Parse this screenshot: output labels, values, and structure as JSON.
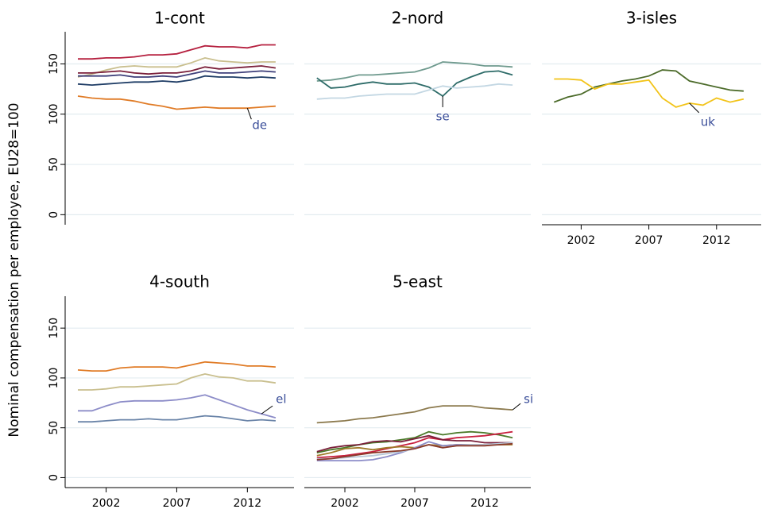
{
  "ytitle": "Nominal compensation per employee, EU28=100",
  "chart_data": [
    {
      "type": "line",
      "title": "1-cont",
      "show_y_axis": true,
      "show_x_axis": false,
      "grid": true,
      "xlim": [
        1999.1,
        2015.3
      ],
      "ylim": [
        -10,
        182
      ],
      "yticks": [
        0,
        50,
        100,
        150
      ],
      "xticks": [
        2002,
        2007,
        2012
      ],
      "x": [
        2000,
        2001,
        2002,
        2003,
        2004,
        2005,
        2006,
        2007,
        2008,
        2009,
        2010,
        2011,
        2012,
        2013,
        2014
      ],
      "series": [
        {
          "color": "#b5203f",
          "values": [
            155,
            155,
            156,
            156,
            157,
            159,
            159,
            160,
            164,
            168,
            167,
            167,
            166,
            169,
            169
          ]
        },
        {
          "color": "#c9bf8e",
          "values": [
            137,
            140,
            144,
            147,
            148,
            147,
            147,
            147,
            151,
            156,
            153,
            152,
            151,
            152,
            152
          ]
        },
        {
          "color": "#7a1f3a",
          "values": [
            141,
            141,
            142,
            143,
            141,
            140,
            141,
            141,
            143,
            147,
            145,
            146,
            147,
            148,
            146
          ]
        },
        {
          "color": "#3e3f7a",
          "values": [
            138,
            138,
            138,
            139,
            137,
            137,
            138,
            137,
            140,
            143,
            141,
            141,
            142,
            143,
            142
          ]
        },
        {
          "color": "#1f3d66",
          "values": [
            130,
            129,
            130,
            131,
            132,
            132,
            133,
            132,
            134,
            138,
            137,
            137,
            136,
            137,
            136
          ]
        },
        {
          "color": "#e07b26",
          "label": "de",
          "values": [
            118,
            116,
            115,
            115,
            113,
            110,
            108,
            105,
            106,
            107,
            106,
            106,
            106,
            107,
            108
          ]
        }
      ]
    },
    {
      "type": "line",
      "title": "2-nord",
      "show_y_axis": false,
      "show_x_axis": false,
      "grid": true,
      "xlim": [
        1999.1,
        2015.3
      ],
      "ylim": [
        -10,
        182
      ],
      "yticks": [
        0,
        50,
        100,
        150
      ],
      "xticks": [
        2002,
        2007,
        2012
      ],
      "x": [
        2000,
        2001,
        2002,
        2003,
        2004,
        2005,
        2006,
        2007,
        2008,
        2009,
        2010,
        2011,
        2012,
        2013,
        2014
      ],
      "series": [
        {
          "color": "#6f9a8e",
          "values": [
            133,
            134,
            136,
            139,
            139,
            140,
            141,
            142,
            146,
            152,
            151,
            150,
            148,
            148,
            147
          ]
        },
        {
          "color": "#2d6b68",
          "label": "se",
          "values": [
            136,
            126,
            127,
            130,
            132,
            130,
            130,
            131,
            127,
            118,
            131,
            137,
            142,
            143,
            139
          ]
        },
        {
          "color": "#c3d7e3",
          "values": [
            115,
            116,
            116,
            118,
            119,
            120,
            120,
            120,
            124,
            128,
            126,
            127,
            128,
            130,
            129
          ]
        }
      ]
    },
    {
      "type": "line",
      "title": "3-isles",
      "show_y_axis": false,
      "show_x_axis": true,
      "grid": true,
      "xlim": [
        1999.1,
        2015.3
      ],
      "ylim": [
        -10,
        182
      ],
      "yticks": [
        0,
        50,
        100,
        150
      ],
      "xticks": [
        2002,
        2007,
        2012
      ],
      "x": [
        2000,
        2001,
        2002,
        2003,
        2004,
        2005,
        2006,
        2007,
        2008,
        2009,
        2010,
        2011,
        2012,
        2013,
        2014
      ],
      "series": [
        {
          "color": "#4c6b2a",
          "values": [
            112,
            117,
            120,
            127,
            130,
            133,
            135,
            138,
            144,
            143,
            133,
            130,
            127,
            124,
            123
          ]
        },
        {
          "color": "#f2c318",
          "label": "uk",
          "values": [
            135,
            135,
            134,
            125,
            130,
            130,
            132,
            134,
            116,
            107,
            111,
            109,
            116,
            112,
            115
          ]
        }
      ]
    },
    {
      "type": "line",
      "title": "4-south",
      "show_y_axis": true,
      "show_x_axis": true,
      "grid": true,
      "xlim": [
        1999.1,
        2015.3
      ],
      "ylim": [
        -10,
        182
      ],
      "yticks": [
        0,
        50,
        100,
        150
      ],
      "xticks": [
        2002,
        2007,
        2012
      ],
      "x": [
        2000,
        2001,
        2002,
        2003,
        2004,
        2005,
        2006,
        2007,
        2008,
        2009,
        2010,
        2011,
        2012,
        2013,
        2014
      ],
      "series": [
        {
          "color": "#e07b26",
          "values": [
            108,
            107,
            107,
            110,
            111,
            111,
            111,
            110,
            113,
            116,
            115,
            114,
            112,
            112,
            111
          ]
        },
        {
          "color": "#c9bf8e",
          "values": [
            88,
            88,
            89,
            91,
            91,
            92,
            93,
            94,
            100,
            104,
            101,
            100,
            97,
            97,
            95
          ]
        },
        {
          "color": "#8c8cc8",
          "label": "el",
          "values": [
            67,
            67,
            72,
            76,
            77,
            77,
            77,
            78,
            80,
            83,
            78,
            73,
            68,
            64,
            60
          ]
        },
        {
          "color": "#6a84a8",
          "values": [
            56,
            56,
            57,
            58,
            58,
            59,
            58,
            58,
            60,
            62,
            61,
            59,
            57,
            58,
            57
          ]
        }
      ]
    },
    {
      "type": "line",
      "title": "5-east",
      "show_y_axis": false,
      "show_x_axis": true,
      "grid": true,
      "xlim": [
        1999.1,
        2015.3
      ],
      "ylim": [
        -10,
        182
      ],
      "yticks": [
        0,
        50,
        100,
        150
      ],
      "xticks": [
        2002,
        2007,
        2012
      ],
      "x": [
        2000,
        2001,
        2002,
        2003,
        2004,
        2005,
        2006,
        2007,
        2008,
        2009,
        2010,
        2011,
        2012,
        2013,
        2014
      ],
      "series": [
        {
          "color": "#8c7a4e",
          "label": "si",
          "values": [
            55,
            56,
            57,
            59,
            60,
            62,
            64,
            66,
            70,
            72,
            72,
            72,
            70,
            69,
            68
          ]
        },
        {
          "color": "#4c7a2a",
          "values": [
            25,
            28,
            30,
            33,
            35,
            36,
            38,
            40,
            46,
            43,
            45,
            46,
            45,
            43,
            40
          ]
        },
        {
          "color": "#c8203f",
          "values": [
            20,
            21,
            22,
            24,
            26,
            29,
            32,
            35,
            40,
            38,
            40,
            41,
            42,
            44,
            46
          ]
        },
        {
          "color": "#7a1f3a",
          "values": [
            26,
            30,
            32,
            33,
            36,
            37,
            36,
            39,
            42,
            38,
            37,
            37,
            35,
            35,
            35
          ]
        },
        {
          "color": "#a07a2a",
          "values": [
            22,
            25,
            29,
            30,
            28,
            30,
            31,
            30,
            33,
            32,
            33,
            33,
            33,
            33,
            33
          ]
        },
        {
          "color": "#8c8cc8",
          "values": [
            17,
            17,
            17,
            17,
            18,
            21,
            25,
            30,
            36,
            32,
            33,
            33,
            33,
            34,
            35
          ]
        },
        {
          "color": "#b8c8d8",
          "values": [
            19,
            19,
            20,
            21,
            22,
            24,
            26,
            29,
            33,
            30,
            32,
            33,
            33,
            34,
            35
          ]
        },
        {
          "color": "#8a3a2a",
          "values": [
            18,
            19,
            21,
            23,
            25,
            26,
            27,
            29,
            33,
            30,
            32,
            32,
            32,
            33,
            34
          ]
        }
      ]
    }
  ]
}
